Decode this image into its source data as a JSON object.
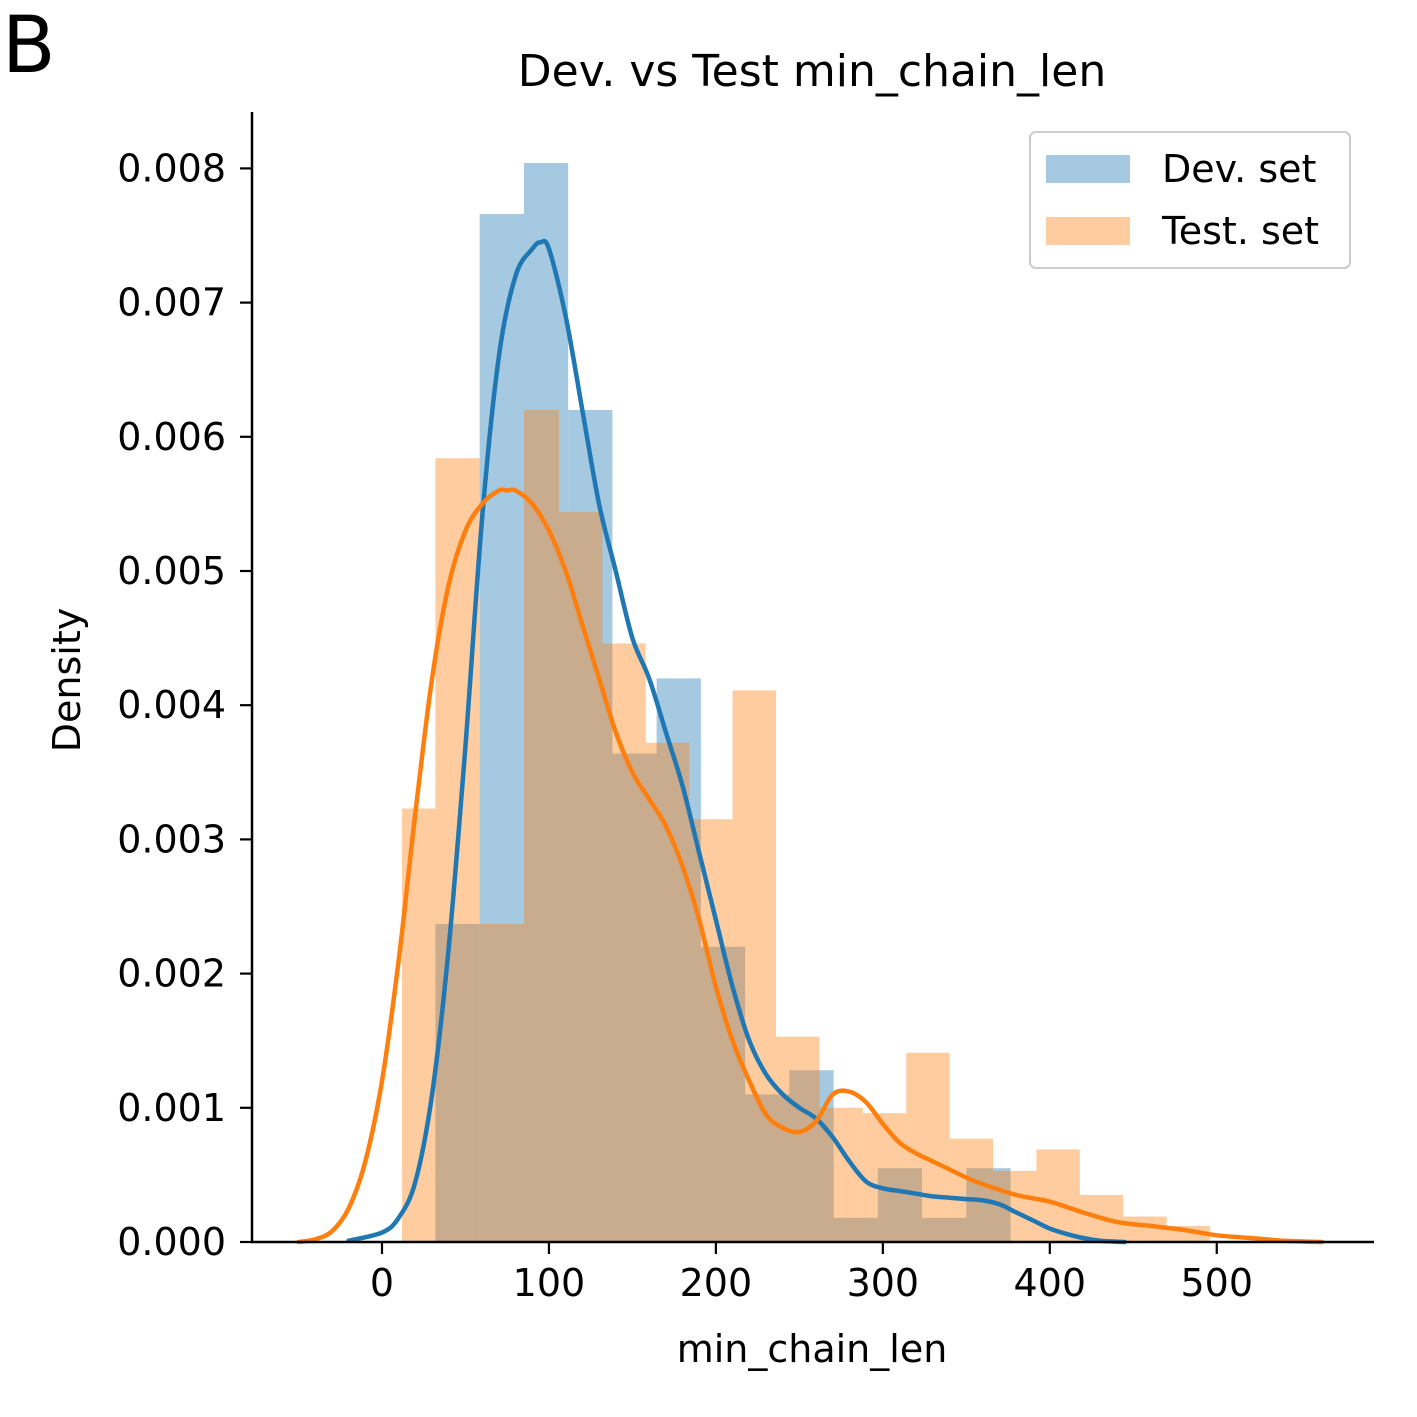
{
  "panel_label": "B",
  "chart_data": {
    "type": "histogram+kde",
    "title": "Dev. vs Test min_chain_len",
    "xlabel": "min_chain_len",
    "ylabel": "Density",
    "xlim": [
      -60,
      590
    ],
    "ylim": [
      0,
      0.0084
    ],
    "x_ticks": [
      0,
      100,
      200,
      300,
      400,
      500
    ],
    "y_ticks": [
      0.0,
      0.001,
      0.002,
      0.003,
      0.004,
      0.005,
      0.006,
      0.007,
      0.008
    ],
    "x_tick_labels": [
      "0",
      "100",
      "200",
      "300",
      "400",
      "500"
    ],
    "y_tick_labels": [
      "0.000",
      "0.001",
      "0.002",
      "0.003",
      "0.004",
      "0.005",
      "0.006",
      "0.007",
      "0.008"
    ],
    "legend_position": "top-right",
    "series": [
      {
        "name": "Dev. set",
        "hist_color": "#1f77b4",
        "line_color": "#1f77b4",
        "bins": [
          {
            "x0": 32,
            "x1": 58.5,
            "density": 0.00237
          },
          {
            "x0": 58.5,
            "x1": 85,
            "density": 0.00766
          },
          {
            "x0": 85,
            "x1": 111.5,
            "density": 0.00804
          },
          {
            "x0": 111.5,
            "x1": 138,
            "density": 0.0062
          },
          {
            "x0": 138,
            "x1": 164.5,
            "density": 0.00364
          },
          {
            "x0": 164.5,
            "x1": 191,
            "density": 0.0042
          },
          {
            "x0": 191,
            "x1": 217.5,
            "density": 0.0022
          },
          {
            "x0": 217.5,
            "x1": 244,
            "density": 0.0011
          },
          {
            "x0": 244,
            "x1": 270.5,
            "density": 0.00128
          },
          {
            "x0": 270.5,
            "x1": 297,
            "density": 0.00018
          },
          {
            "x0": 297,
            "x1": 323.5,
            "density": 0.00055
          },
          {
            "x0": 323.5,
            "x1": 350,
            "density": 0.00018
          },
          {
            "x0": 350,
            "x1": 376.5,
            "density": 0.00055
          }
        ],
        "kde": {
          "x": [
            -20,
            0,
            10,
            20,
            30,
            40,
            50,
            60,
            70,
            80,
            90,
            95,
            100,
            110,
            120,
            130,
            140,
            150,
            160,
            170,
            180,
            190,
            200,
            210,
            220,
            230,
            240,
            250,
            260,
            270,
            280,
            290,
            300,
            310,
            320,
            330,
            340,
            350,
            360,
            370,
            380,
            390,
            400,
            410,
            420,
            430,
            445
          ],
          "y": [
            1e-05,
            7e-05,
            0.00018,
            0.00045,
            0.0011,
            0.0022,
            0.0037,
            0.0054,
            0.0066,
            0.0072,
            0.0074,
            0.00745,
            0.0074,
            0.0069,
            0.0062,
            0.0055,
            0.005,
            0.0045,
            0.0042,
            0.0038,
            0.0034,
            0.0029,
            0.0024,
            0.0019,
            0.0015,
            0.00125,
            0.0011,
            0.001,
            0.00092,
            0.00078,
            0.0006,
            0.00045,
            0.0004,
            0.00038,
            0.00036,
            0.00034,
            0.00033,
            0.00032,
            0.00031,
            0.00028,
            0.00022,
            0.00016,
            0.0001,
            6e-05,
            3e-05,
            1e-05,
            0.0
          ]
        }
      },
      {
        "name": "Test. set",
        "hist_color": "#ff7f0e",
        "line_color": "#ff7f0e",
        "bins": [
          {
            "x0": 12,
            "x1": 32,
            "density": 0.00323
          },
          {
            "x0": 32,
            "x1": 58.5,
            "density": 0.00584
          },
          {
            "x0": 58.5,
            "x1": 85,
            "density": 0.00237
          },
          {
            "x0": 85,
            "x1": 106,
            "density": 0.0062
          },
          {
            "x0": 106,
            "x1": 132,
            "density": 0.00544
          },
          {
            "x0": 132,
            "x1": 158,
            "density": 0.00446
          },
          {
            "x0": 158,
            "x1": 184,
            "density": 0.00372
          },
          {
            "x0": 184,
            "x1": 210,
            "density": 0.00315
          },
          {
            "x0": 210,
            "x1": 236,
            "density": 0.00411
          },
          {
            "x0": 236,
            "x1": 262,
            "density": 0.00153
          },
          {
            "x0": 262,
            "x1": 288,
            "density": 0.001
          },
          {
            "x0": 288,
            "x1": 314,
            "density": 0.00096
          },
          {
            "x0": 314,
            "x1": 340,
            "density": 0.00141
          },
          {
            "x0": 340,
            "x1": 366,
            "density": 0.00077
          },
          {
            "x0": 366,
            "x1": 392,
            "density": 0.00053
          },
          {
            "x0": 392,
            "x1": 418,
            "density": 0.00069
          },
          {
            "x0": 418,
            "x1": 444,
            "density": 0.00035
          },
          {
            "x0": 444,
            "x1": 470,
            "density": 0.00019
          },
          {
            "x0": 470,
            "x1": 496,
            "density": 0.00012
          }
        ],
        "kde": {
          "x": [
            -50,
            -40,
            -30,
            -20,
            -10,
            0,
            10,
            20,
            30,
            40,
            50,
            60,
            70,
            75,
            80,
            90,
            100,
            110,
            120,
            130,
            140,
            150,
            160,
            170,
            180,
            190,
            200,
            210,
            220,
            230,
            240,
            250,
            260,
            270,
            280,
            290,
            300,
            310,
            320,
            330,
            340,
            350,
            360,
            380,
            400,
            420,
            440,
            460,
            480,
            500,
            520,
            540,
            563
          ],
          "y": [
            0.0,
            2e-05,
            8e-05,
            0.00025,
            0.0006,
            0.0012,
            0.0021,
            0.0032,
            0.0042,
            0.0049,
            0.0053,
            0.0055,
            0.0056,
            0.0056,
            0.0056,
            0.0055,
            0.0053,
            0.005,
            0.0046,
            0.0042,
            0.0038,
            0.0035,
            0.0033,
            0.0031,
            0.0028,
            0.0024,
            0.0019,
            0.0015,
            0.0012,
            0.00095,
            0.00085,
            0.00082,
            0.0009,
            0.0011,
            0.00112,
            0.00104,
            0.00088,
            0.00074,
            0.00066,
            0.0006,
            0.00054,
            0.00048,
            0.00043,
            0.00035,
            0.0003,
            0.00022,
            0.00015,
            0.00012,
            9e-05,
            5e-05,
            3e-05,
            1e-05,
            0.0
          ]
        }
      }
    ]
  }
}
